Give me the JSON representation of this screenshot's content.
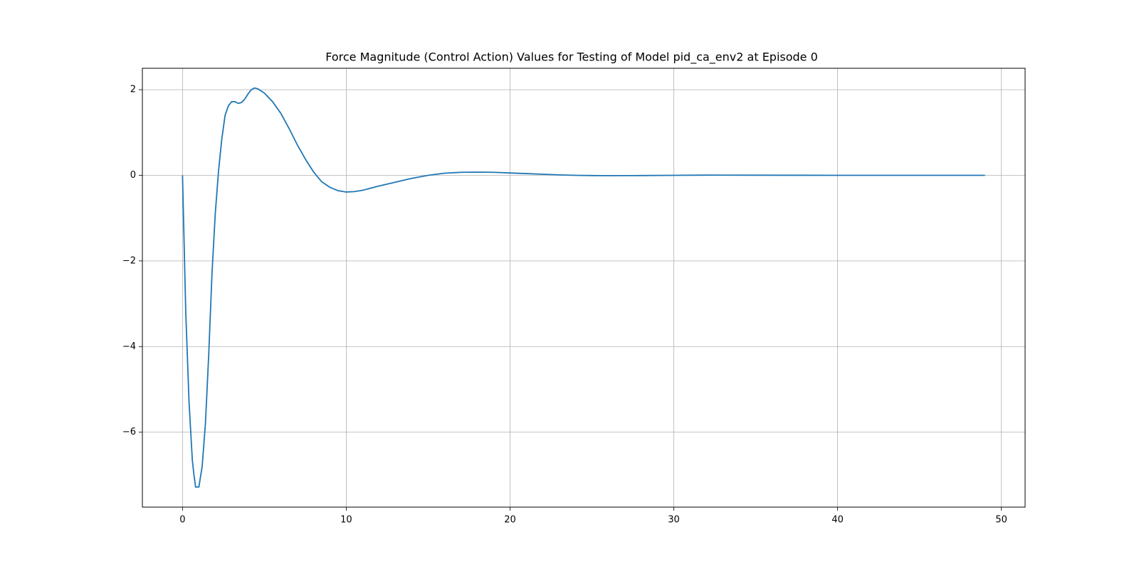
{
  "chart_data": {
    "type": "line",
    "title": "Force Magnitude (Control Action) Values for Testing of Model pid_ca_env2 at Episode 0",
    "xlabel": "",
    "ylabel": "",
    "xlim": [
      -2.45,
      51.45
    ],
    "ylim": [
      -7.75,
      2.5
    ],
    "xticks": [
      0,
      10,
      20,
      30,
      40,
      50
    ],
    "xtick_labels": [
      "0",
      "10",
      "20",
      "30",
      "40",
      "50"
    ],
    "yticks": [
      2,
      0,
      -2,
      -4,
      -6
    ],
    "ytick_labels": [
      "2",
      "0",
      "−2",
      "−4",
      "−6"
    ],
    "grid": true,
    "legend": "none",
    "series": [
      {
        "color": "#1f77b4",
        "x": [
          0,
          0.2,
          0.4,
          0.6,
          0.7,
          0.8,
          0.9,
          1.0,
          1.2,
          1.4,
          1.6,
          1.8,
          2.0,
          2.2,
          2.4,
          2.6,
          2.8,
          3.0,
          3.2,
          3.4,
          3.6,
          3.8,
          4.0,
          4.2,
          4.4,
          4.6,
          4.8,
          5.0,
          5.5,
          6.0,
          6.5,
          7.0,
          7.5,
          8.0,
          8.5,
          9.0,
          9.5,
          10.0,
          10.5,
          11.0,
          11.5,
          12.0,
          13.0,
          14.0,
          15.0,
          16.0,
          17.0,
          18.0,
          19.0,
          20.0,
          21.0,
          22.0,
          23.0,
          24.0,
          25.0,
          26.0,
          27.0,
          28.0,
          30.0,
          32.0,
          35.0,
          40.0,
          45.0,
          49.0
        ],
        "y": [
          0,
          -3.2,
          -5.3,
          -6.65,
          -7.0,
          -7.28,
          -7.28,
          -7.28,
          -6.8,
          -5.8,
          -4.2,
          -2.3,
          -0.9,
          0.1,
          0.85,
          1.4,
          1.62,
          1.72,
          1.72,
          1.68,
          1.7,
          1.78,
          1.9,
          2.0,
          2.04,
          2.02,
          1.97,
          1.92,
          1.72,
          1.45,
          1.1,
          0.72,
          0.38,
          0.08,
          -0.15,
          -0.28,
          -0.36,
          -0.39,
          -0.38,
          -0.35,
          -0.3,
          -0.25,
          -0.16,
          -0.07,
          0.0,
          0.05,
          0.07,
          0.075,
          0.07,
          0.055,
          0.04,
          0.025,
          0.01,
          0.0,
          -0.005,
          -0.008,
          -0.007,
          -0.005,
          0.0,
          0.005,
          0.003,
          0.0,
          0.0,
          0.0
        ]
      }
    ]
  }
}
